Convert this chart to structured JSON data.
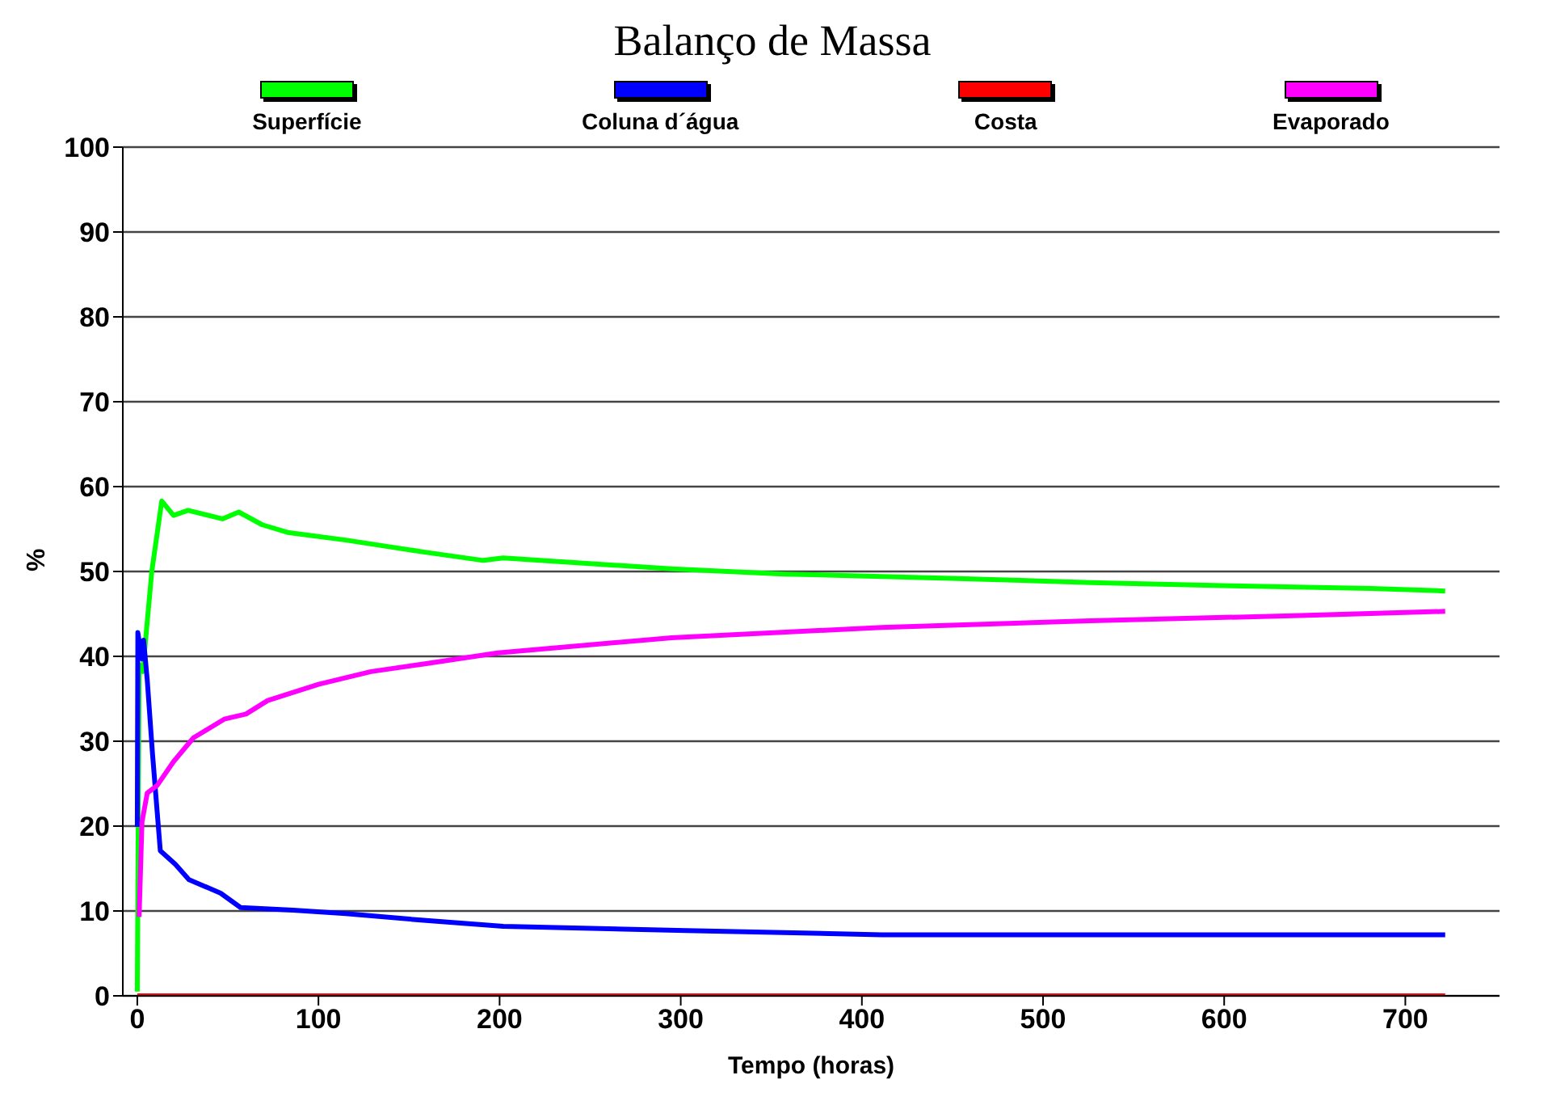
{
  "chart_data": {
    "type": "line",
    "title": "Balanço de Massa",
    "xlabel": "Tempo (horas)",
    "ylabel": "%",
    "xlim": [
      -8,
      752
    ],
    "xticks": [
      0,
      100,
      200,
      300,
      400,
      500,
      600,
      700
    ],
    "ylim": [
      0,
      100
    ],
    "yticks": [
      0,
      10,
      20,
      30,
      40,
      50,
      60,
      70,
      80,
      90,
      100
    ],
    "grid": "y",
    "legend": "top",
    "marker": "none",
    "line_style": "solid",
    "series": [
      {
        "name": "Superfície",
        "color": "#00ff00",
        "x": [
          0,
          1,
          3,
          8,
          13.5,
          20,
          28,
          47,
          56,
          69,
          83,
          115,
          158,
          191,
          202,
          295,
          357,
          449,
          526,
          604,
          681,
          722
        ],
        "values": [
          0.5,
          39,
          38.2,
          50,
          58.3,
          56.6,
          57.2,
          56.2,
          57,
          55.5,
          54.6,
          53.7,
          52.3,
          51.3,
          51.6,
          50.3,
          49.7,
          49.2,
          48.7,
          48.3,
          48,
          47.7
        ]
      },
      {
        "name": "Coluna d´água",
        "color": "#0000ff",
        "x": [
          0,
          0.3,
          2.6,
          3.5,
          5.5,
          8.4,
          12.7,
          21,
          28.5,
          46,
          57,
          86,
          115,
          158,
          202,
          303,
          411,
          722
        ],
        "values": [
          19.9,
          42.8,
          39.7,
          41.9,
          37.2,
          28.5,
          17.1,
          15.5,
          13.7,
          12.1,
          10.4,
          10.1,
          9.7,
          8.9,
          8.2,
          7.7,
          7.2,
          7.2
        ]
      },
      {
        "name": "Costa",
        "color": "#ff0000",
        "x": [
          0,
          722
        ],
        "values": [
          0,
          0
        ]
      },
      {
        "name": "Evaporado",
        "color": "#ff00ff",
        "x": [
          1,
          2.6,
          5.5,
          11,
          20,
          31,
          48,
          60,
          72,
          100,
          129,
          158,
          199,
          295,
          411,
          526,
          642,
          722
        ],
        "values": [
          9.3,
          20.5,
          23.9,
          24.8,
          27.6,
          30.4,
          32.6,
          33.2,
          34.8,
          36.7,
          38.2,
          39.1,
          40.4,
          42.2,
          43.4,
          44.2,
          44.8,
          45.3
        ]
      }
    ]
  }
}
